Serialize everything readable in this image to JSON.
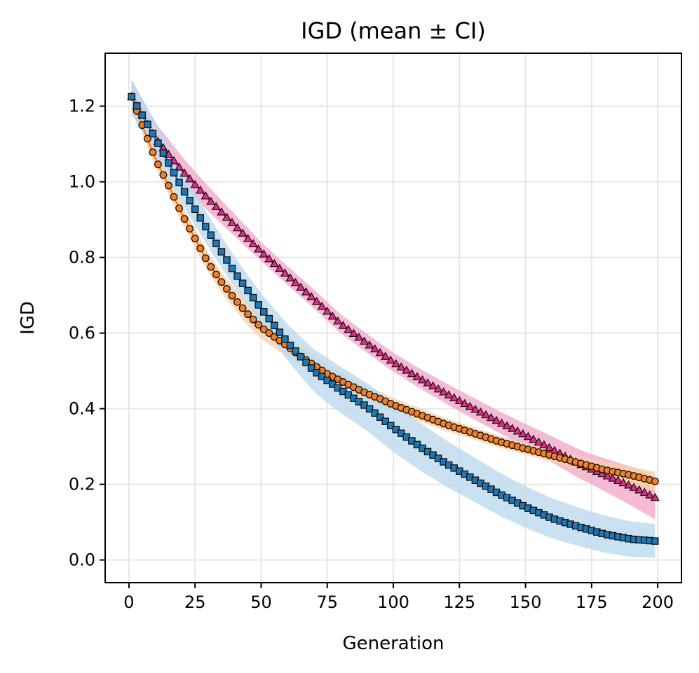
{
  "chart_data": {
    "type": "line",
    "title": "IGD (mean ± CI)",
    "xlabel": "Generation",
    "ylabel": "IGD",
    "xlim": [
      -9,
      209
    ],
    "ylim": [
      -0.06,
      1.34
    ],
    "xticks": [
      0,
      25,
      50,
      75,
      100,
      125,
      150,
      175,
      200
    ],
    "xtick_labels": [
      "0",
      "25",
      "50",
      "75",
      "100",
      "125",
      "150",
      "175",
      "200"
    ],
    "yticks": [
      0.0,
      0.2,
      0.4,
      0.6,
      0.8,
      1.0,
      1.2
    ],
    "ytick_labels": [
      "0.0",
      "0.2",
      "0.4",
      "0.6",
      "0.8",
      "1.0",
      "1.2"
    ],
    "grid": true,
    "x_range": [
      1,
      199
    ],
    "x_step": 2,
    "series": [
      {
        "name": "triangle series",
        "color": "#e7298a",
        "band_color": "#f4a9c9",
        "marker": "triangle",
        "keypoints": [
          [
            1,
            1.225
          ],
          [
            10,
            1.115
          ],
          [
            20,
            1.03
          ],
          [
            30,
            0.955
          ],
          [
            40,
            0.885
          ],
          [
            50,
            0.815
          ],
          [
            60,
            0.752
          ],
          [
            70,
            0.69
          ],
          [
            80,
            0.625
          ],
          [
            90,
            0.573
          ],
          [
            100,
            0.523
          ],
          [
            110,
            0.48
          ],
          [
            120,
            0.44
          ],
          [
            130,
            0.402
          ],
          [
            140,
            0.365
          ],
          [
            150,
            0.33
          ],
          [
            160,
            0.293
          ],
          [
            170,
            0.255
          ],
          [
            180,
            0.225
          ],
          [
            190,
            0.195
          ],
          [
            199,
            0.165
          ]
        ],
        "ci": [
          [
            1,
            0.045
          ],
          [
            50,
            0.025
          ],
          [
            100,
            0.025
          ],
          [
            150,
            0.03
          ],
          [
            175,
            0.04
          ],
          [
            199,
            0.058
          ]
        ]
      },
      {
        "name": "circle series",
        "color": "#f07f2c",
        "band_color": "#fbd0a5",
        "marker": "circle",
        "keypoints": [
          [
            1,
            1.225
          ],
          [
            5,
            1.15
          ],
          [
            10,
            1.06
          ],
          [
            15,
            0.99
          ],
          [
            20,
            0.915
          ],
          [
            25,
            0.85
          ],
          [
            30,
            0.785
          ],
          [
            35,
            0.735
          ],
          [
            40,
            0.69
          ],
          [
            45,
            0.65
          ],
          [
            50,
            0.615
          ],
          [
            55,
            0.59
          ],
          [
            60,
            0.565
          ],
          [
            65,
            0.538
          ],
          [
            70,
            0.515
          ],
          [
            75,
            0.492
          ],
          [
            80,
            0.474
          ],
          [
            85,
            0.457
          ],
          [
            90,
            0.44
          ],
          [
            95,
            0.426
          ],
          [
            100,
            0.41
          ],
          [
            110,
            0.384
          ],
          [
            120,
            0.358
          ],
          [
            130,
            0.336
          ],
          [
            140,
            0.313
          ],
          [
            150,
            0.294
          ],
          [
            160,
            0.276
          ],
          [
            170,
            0.257
          ],
          [
            180,
            0.238
          ],
          [
            190,
            0.224
          ],
          [
            199,
            0.208
          ]
        ],
        "ci": [
          [
            1,
            0.02
          ],
          [
            50,
            0.03
          ],
          [
            100,
            0.018
          ],
          [
            150,
            0.015
          ],
          [
            199,
            0.025
          ]
        ]
      },
      {
        "name": "square series",
        "color": "#1f77b4",
        "band_color": "#bcdaed",
        "marker": "square",
        "keypoints": [
          [
            1,
            1.225
          ],
          [
            10,
            1.115
          ],
          [
            20,
            0.985
          ],
          [
            30,
            0.87
          ],
          [
            40,
            0.76
          ],
          [
            50,
            0.665
          ],
          [
            60,
            0.575
          ],
          [
            70,
            0.5
          ],
          [
            80,
            0.45
          ],
          [
            90,
            0.405
          ],
          [
            100,
            0.35
          ],
          [
            110,
            0.3
          ],
          [
            120,
            0.255
          ],
          [
            130,
            0.215
          ],
          [
            140,
            0.175
          ],
          [
            150,
            0.14
          ],
          [
            160,
            0.11
          ],
          [
            170,
            0.088
          ],
          [
            180,
            0.068
          ],
          [
            190,
            0.055
          ],
          [
            199,
            0.05
          ]
        ],
        "ci": [
          [
            1,
            0.045
          ],
          [
            50,
            0.04
          ],
          [
            75,
            0.06
          ],
          [
            100,
            0.065
          ],
          [
            150,
            0.055
          ],
          [
            175,
            0.05
          ],
          [
            199,
            0.045
          ]
        ]
      }
    ]
  }
}
